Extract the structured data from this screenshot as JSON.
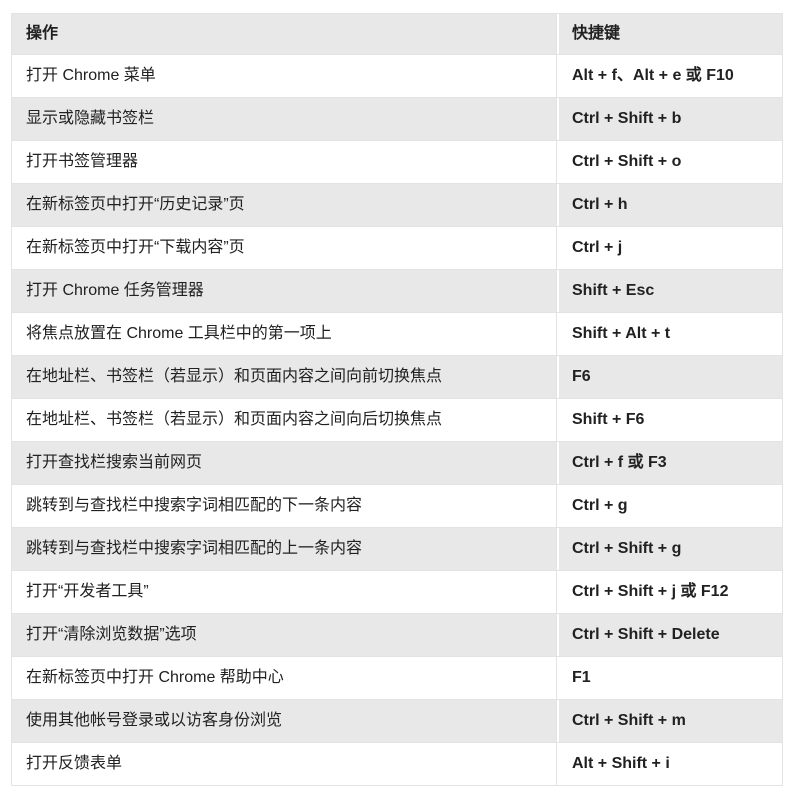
{
  "page": {
    "background": "#ffffff"
  },
  "table": {
    "headers": {
      "action": "操作",
      "shortcut": "快捷键"
    },
    "rows": [
      {
        "action": "打开 Chrome 菜单",
        "shortcut": "Alt + f、Alt + e 或 F10"
      },
      {
        "action": "显示或隐藏书签栏",
        "shortcut": "Ctrl + Shift + b"
      },
      {
        "action": "打开书签管理器",
        "shortcut": "Ctrl + Shift + o"
      },
      {
        "action": "在新标签页中打开“历史记录”页",
        "shortcut": "Ctrl + h"
      },
      {
        "action": "在新标签页中打开“下载内容”页",
        "shortcut": "Ctrl + j"
      },
      {
        "action": "打开 Chrome 任务管理器",
        "shortcut": "Shift + Esc"
      },
      {
        "action": "将焦点放置在 Chrome 工具栏中的第一项上",
        "shortcut": "Shift + Alt + t"
      },
      {
        "action": "在地址栏、书签栏（若显示）和页面内容之间向前切换焦点",
        "shortcut": "F6"
      },
      {
        "action": "在地址栏、书签栏（若显示）和页面内容之间向后切换焦点",
        "shortcut": "Shift + F6"
      },
      {
        "action": "打开查找栏搜索当前网页",
        "shortcut": "Ctrl + f 或 F3"
      },
      {
        "action": "跳转到与查找栏中搜索字词相匹配的下一条内容",
        "shortcut": "Ctrl + g"
      },
      {
        "action": "跳转到与查找栏中搜索字词相匹配的上一条内容",
        "shortcut": "Ctrl + Shift + g"
      },
      {
        "action": "打开“开发者工具”",
        "shortcut": "Ctrl + Shift + j 或 F12"
      },
      {
        "action": "打开“清除浏览数据”选项",
        "shortcut": "Ctrl + Shift + Delete"
      },
      {
        "action": "在新标签页中打开 Chrome 帮助中心",
        "shortcut": "F1"
      },
      {
        "action": "使用其他帐号登录或以访客身份浏览",
        "shortcut": "Ctrl + Shift + m"
      },
      {
        "action": "打开反馈表单",
        "shortcut": "Alt + Shift + i"
      }
    ],
    "colors": {
      "stripe_bg": "#e8e8e8",
      "row_bg": "#ffffff",
      "border": "#e3e3e3",
      "text": "#212121"
    }
  }
}
